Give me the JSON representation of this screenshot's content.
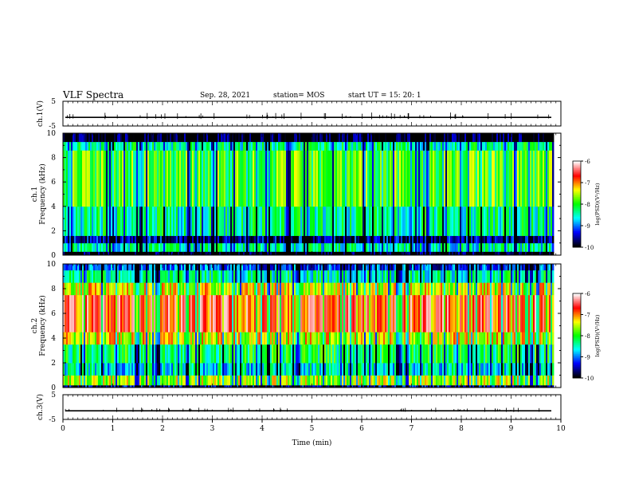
{
  "header": {
    "title": "VLF Spectra",
    "date": "Sep. 28, 2021",
    "station": "station= MOS",
    "start": "start  UT =   15: 20: 1"
  },
  "chart_data": [
    {
      "type": "line",
      "ylabel": "ch.1(V)",
      "ylim": [
        -5,
        5
      ],
      "yticks": [
        "5",
        "-5"
      ],
      "x": [
        0,
        10
      ],
      "values": [
        -1.5,
        -1.5
      ],
      "xlim": [
        0,
        10
      ]
    },
    {
      "type": "heatmap",
      "ylabel": "ch.1\nFrequency (kHz)",
      "ylabel_lines": [
        "ch.1",
        "Frequency (kHz)"
      ],
      "ylim": [
        0,
        10
      ],
      "yticks": [
        "0",
        "2",
        "4",
        "6",
        "8",
        "10"
      ],
      "xlim": [
        0,
        9.85
      ],
      "colorbar": {
        "label": "log(PSD)(V²/Hz)",
        "min": -10,
        "max": -6,
        "ticks": [
          "-6",
          "-7",
          "-8",
          "-9",
          "-10"
        ]
      },
      "bands": [
        {
          "f": [
            0,
            0.3
          ],
          "level": -10.0
        },
        {
          "f": [
            0.3,
            1.0
          ],
          "level": -8.5
        },
        {
          "f": [
            1.0,
            1.6
          ],
          "level": -9.6
        },
        {
          "f": [
            1.6,
            4.0
          ],
          "level": -8.4
        },
        {
          "f": [
            4.0,
            8.6
          ],
          "level": -7.9
        },
        {
          "f": [
            8.6,
            9.3
          ],
          "level": -8.4
        },
        {
          "f": [
            9.3,
            10
          ],
          "level": -10.0
        }
      ]
    },
    {
      "type": "heatmap",
      "ylabel": "ch.2\nFrequency (kHz)",
      "ylabel_lines": [
        "ch.2",
        "Frequency (kHz)"
      ],
      "ylim": [
        0,
        10
      ],
      "yticks": [
        "0",
        "2",
        "4",
        "6",
        "8",
        "10"
      ],
      "xlim": [
        0,
        9.85
      ],
      "colorbar": {
        "label": "log(PSD)(V²/Hz)",
        "min": -10,
        "max": -6,
        "ticks": [
          "-6",
          "-7",
          "-8",
          "-9",
          "-10"
        ]
      },
      "bands": [
        {
          "f": [
            0,
            0.2
          ],
          "level": -9.6
        },
        {
          "f": [
            0.2,
            1.0
          ],
          "level": -7.6
        },
        {
          "f": [
            1.0,
            2.0
          ],
          "level": -8.6
        },
        {
          "f": [
            2.0,
            3.5
          ],
          "level": -8.2
        },
        {
          "f": [
            3.5,
            4.5
          ],
          "level": -7.4
        },
        {
          "f": [
            4.5,
            7.5
          ],
          "level": -6.7
        },
        {
          "f": [
            7.5,
            8.5
          ],
          "level": -7.4
        },
        {
          "f": [
            8.5,
            9.5
          ],
          "level": -8.4
        },
        {
          "f": [
            9.5,
            10
          ],
          "level": -9.2
        }
      ]
    },
    {
      "type": "line",
      "ylabel": "ch.3(V)",
      "ylim": [
        -5,
        5
      ],
      "yticks": [
        "5",
        "-5"
      ],
      "x": [
        0,
        10
      ],
      "values": [
        -1.5,
        -1.5
      ],
      "xlim": [
        0,
        10
      ],
      "xlabel": "Time  (min)",
      "xticks": [
        "0",
        "1",
        "2",
        "3",
        "4",
        "5",
        "6",
        "7",
        "8",
        "9",
        "10"
      ]
    }
  ],
  "colors": {
    "scale": [
      "#000000",
      "#0000ff",
      "#00ffff",
      "#00ff00",
      "#ffff00",
      "#ff0000",
      "#ffffff"
    ]
  }
}
